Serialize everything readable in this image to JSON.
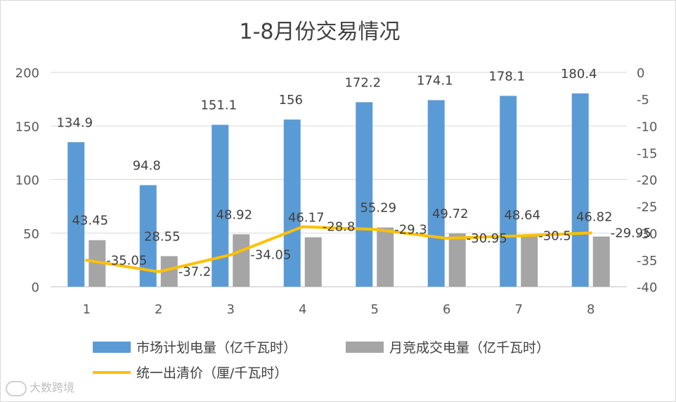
{
  "chart_data": {
    "type": "bar",
    "title": "1-8月份交易情况",
    "categories": [
      "1",
      "2",
      "3",
      "4",
      "5",
      "6",
      "7",
      "8"
    ],
    "ylim_left": [
      0,
      200
    ],
    "yticks_left": [
      0,
      50,
      100,
      150,
      200
    ],
    "ylim_right": [
      -40,
      0
    ],
    "yticks_right": [
      0,
      -5,
      -10,
      -15,
      -20,
      -25,
      -30,
      -35,
      -40
    ],
    "grid": true,
    "legend_position": "bottom",
    "series": [
      {
        "name": "市场计划电量（亿千瓦时）",
        "type": "bar",
        "axis": "left",
        "color": "#5B9BD5",
        "values": [
          134.9,
          94.8,
          151.1,
          156,
          172.2,
          174.1,
          178.1,
          180.4
        ],
        "labels": [
          "134.9",
          "94.8",
          "151.1",
          "156",
          "172.2",
          "174.1",
          "178.1",
          "180.4"
        ]
      },
      {
        "name": "月竞成交电量（亿千瓦时）",
        "type": "bar",
        "axis": "left",
        "color": "#A5A5A5",
        "values": [
          43.45,
          28.55,
          48.92,
          46.17,
          55.29,
          49.72,
          48.64,
          46.82
        ],
        "labels": [
          "43.45",
          "28.55",
          "48.92",
          "46.17",
          "55.29",
          "49.72",
          "48.64",
          "46.82"
        ]
      },
      {
        "name": "统一出清价（厘/千瓦时）",
        "type": "line",
        "axis": "right",
        "color": "#FFC000",
        "values": [
          -35.05,
          -37.2,
          -34.05,
          -28.8,
          -29.3,
          -30.95,
          -30.5,
          -29.95
        ],
        "labels": [
          "-35.05",
          "-37.2",
          "-34.05",
          "-28.8",
          "-29.3",
          "-30.95",
          "-30.5",
          "-29.95"
        ]
      }
    ]
  },
  "watermark": {
    "text": "大数跨境"
  }
}
